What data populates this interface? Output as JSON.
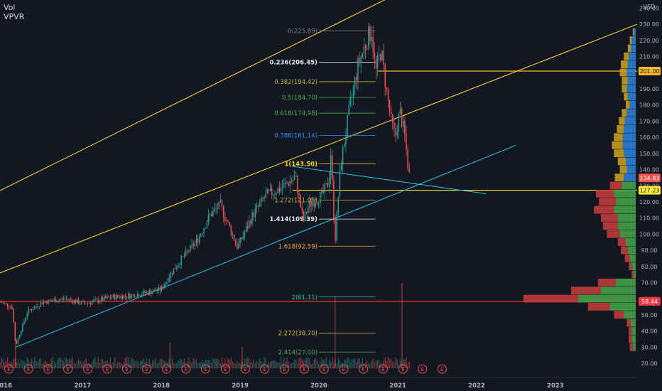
{
  "legend": {
    "line1": "Vol",
    "line2": "VPVR"
  },
  "price_axis": {
    "unit": "USD",
    "ticks": [
      "20.00",
      "30.00",
      "40.00",
      "50.00",
      "60.00",
      "70.00",
      "80.00",
      "90.00",
      "100.00",
      "110.00",
      "120.00",
      "130.00",
      "140.00",
      "150.00",
      "160.00",
      "170.00",
      "180.00",
      "190.00",
      "200.00",
      "210.00",
      "220.00",
      "230.00",
      "240.00"
    ],
    "badges": [
      {
        "value": 201.0,
        "label": "201.00",
        "bg": "#f5b927",
        "fg": "#131722"
      },
      {
        "value": 134.83,
        "label": "134.83",
        "bg": "#ef5350",
        "fg": "#ffffff"
      },
      {
        "value": 127.23,
        "label": "127.23",
        "bg": "#ffeb3b",
        "fg": "#131722"
      },
      {
        "value": 58.44,
        "label": "58.44",
        "bg": "#f23645",
        "fg": "#ffffff"
      }
    ]
  },
  "time_axis": {
    "labels": [
      "2016",
      "2017",
      "2018",
      "2019",
      "2020",
      "2021",
      "2022",
      "2023"
    ]
  },
  "earnings_marker": "E",
  "colors": {
    "background": "#131722",
    "up": "#26a69a",
    "down": "#ef5350",
    "trend_yellow": "#f2d62d",
    "trend_blue": "#2bb8d9",
    "support_red": "#ff2a2a",
    "vp_blue": "#2a7fd4",
    "vp_gold": "#c79b1f",
    "vp_green": "#43a047",
    "vp_red": "#c23b3b"
  },
  "chart_data": {
    "type": "candlestick",
    "title": "",
    "ylim": [
      17,
      245
    ],
    "x_range": [
      "2015-12-15",
      "2024-01-15"
    ],
    "price_path": [
      [
        "2015-12-15",
        58
      ],
      [
        "2016-02-10",
        55
      ],
      [
        "2016-02-25",
        31
      ],
      [
        "2016-04-20",
        52
      ],
      [
        "2016-07-01",
        58
      ],
      [
        "2016-10-15",
        60
      ],
      [
        "2017-01-10",
        57
      ],
      [
        "2017-05-15",
        61
      ],
      [
        "2017-08-10",
        62
      ],
      [
        "2017-11-01",
        64
      ],
      [
        "2018-01-01",
        66
      ],
      [
        "2018-02-15",
        76
      ],
      [
        "2018-04-01",
        84
      ],
      [
        "2018-06-15",
        96
      ],
      [
        "2018-08-15",
        112
      ],
      [
        "2018-10-01",
        118
      ],
      [
        "2018-12-20",
        92
      ],
      [
        "2019-03-01",
        112
      ],
      [
        "2019-05-01",
        124
      ],
      [
        "2019-07-01",
        128
      ],
      [
        "2019-09-15",
        135
      ],
      [
        "2019-10-20",
        108
      ],
      [
        "2019-11-15",
        118
      ],
      [
        "2020-01-15",
        124
      ],
      [
        "2020-02-15",
        132
      ],
      [
        "2020-02-25",
        150
      ],
      [
        "2020-03-16",
        96
      ],
      [
        "2020-04-10",
        142
      ],
      [
        "2020-05-20",
        176
      ],
      [
        "2020-07-01",
        205
      ],
      [
        "2020-08-15",
        222
      ],
      [
        "2020-09-01",
        226
      ],
      [
        "2020-09-20",
        200
      ],
      [
        "2020-10-15",
        214
      ],
      [
        "2020-11-10",
        188
      ],
      [
        "2020-12-01",
        170
      ],
      [
        "2020-12-20",
        160
      ],
      [
        "2021-01-10",
        176
      ],
      [
        "2021-02-01",
        162
      ],
      [
        "2021-02-20",
        138
      ],
      [
        "2021-03-01",
        134.83
      ]
    ],
    "volume_spikes": [
      {
        "date": "2020-03-16",
        "rel": 0.85
      },
      {
        "date": "2021-01-20",
        "rel": 1.0
      },
      {
        "date": "2016-02-25",
        "rel": 0.35
      },
      {
        "date": "2018-02-10",
        "rel": 0.3
      },
      {
        "date": "2019-01-10",
        "rel": 0.25
      }
    ],
    "earnings_dates": [
      "2016-01-25",
      "2016-04-25",
      "2016-07-25",
      "2016-10-25",
      "2017-01-25",
      "2017-04-25",
      "2017-07-25",
      "2017-10-25",
      "2018-01-25",
      "2018-04-25",
      "2018-07-25",
      "2018-10-25",
      "2019-01-25",
      "2019-04-25",
      "2019-07-25",
      "2019-10-25",
      "2020-01-25",
      "2020-04-25",
      "2020-07-25",
      "2020-10-25",
      "2021-01-25",
      "2021-04-25",
      "2021-07-25"
    ],
    "fib_levels": [
      {
        "label": "0(225.89)",
        "value": 225.89,
        "color": "#787b86",
        "bold": false
      },
      {
        "label": "0.236(206.45)",
        "value": 206.45,
        "color": "#e0e3eb",
        "bold": true
      },
      {
        "label": "0.382(194.42)",
        "value": 194.42,
        "color": "#c9b93c",
        "bold": false
      },
      {
        "label": "0.5(184.70)",
        "value": 184.7,
        "color": "#4caf50",
        "bold": false
      },
      {
        "label": "0.618(174.98)",
        "value": 174.98,
        "color": "#4caf50",
        "bold": false
      },
      {
        "label": "0.786(161.14)",
        "value": 161.14,
        "color": "#2196f3",
        "bold": false
      },
      {
        "label": "1(143.50)",
        "value": 143.5,
        "color": "#f2d62d",
        "bold": true
      },
      {
        "label": "1.272(121.09)",
        "value": 121.09,
        "color": "#c9b93c",
        "bold": false
      },
      {
        "label": "1.414(109.39)",
        "value": 109.39,
        "color": "#e0e3eb",
        "bold": true
      },
      {
        "label": "1.618(92.59)",
        "value": 92.59,
        "color": "#f2a23c",
        "bold": false
      },
      {
        "label": "2(61.11)",
        "value": 61.11,
        "color": "#26c6a9",
        "bold": false
      },
      {
        "label": "2.272(38.70)",
        "value": 38.7,
        "color": "#c9b93c",
        "bold": false
      },
      {
        "label": "2.414(27.00)",
        "value": 27.0,
        "color": "#4caf50",
        "bold": false
      }
    ],
    "trend_lines": [
      {
        "color": "#f2d62d",
        "from": [
          "2015-12-15",
          127
        ],
        "to": [
          "2020-12-15",
          248
        ]
      },
      {
        "color": "#f2d62d",
        "from": [
          "2015-12-15",
          76
        ],
        "to": [
          "2024-01-15",
          230
        ]
      },
      {
        "color": "#2bb8d9",
        "from": [
          "2016-02-25",
          30
        ],
        "to": [
          "2022-07-01",
          155
        ]
      },
      {
        "color": "#2bb8d9",
        "from": [
          "2019-09-01",
          142
        ],
        "to": [
          "2022-02-15",
          125
        ]
      }
    ],
    "horizontal_lines": [
      {
        "value": 201.0,
        "color": "#f5b927",
        "from": "2020-10-01"
      },
      {
        "value": 127.23,
        "color": "#ffeb3b",
        "from": "2019-09-01"
      },
      {
        "value": 58.44,
        "color": "#ff2a2a",
        "from": "2015-12-15"
      }
    ],
    "volume_profile": [
      {
        "price": 225,
        "up": 0.02,
        "down": 0.01
      },
      {
        "price": 220,
        "up": 0.04,
        "down": 0.02
      },
      {
        "price": 215,
        "up": 0.05,
        "down": 0.03
      },
      {
        "price": 210,
        "up": 0.07,
        "down": 0.05
      },
      {
        "price": 205,
        "up": 0.08,
        "down": 0.07
      },
      {
        "price": 200,
        "up": 0.09,
        "down": 0.07
      },
      {
        "price": 195,
        "up": 0.08,
        "down": 0.06
      },
      {
        "price": 190,
        "up": 0.09,
        "down": 0.05
      },
      {
        "price": 185,
        "up": 0.08,
        "down": 0.04
      },
      {
        "price": 180,
        "up": 0.06,
        "down": 0.04
      },
      {
        "price": 175,
        "up": 0.09,
        "down": 0.05
      },
      {
        "price": 170,
        "up": 0.11,
        "down": 0.06
      },
      {
        "price": 165,
        "up": 0.12,
        "down": 0.07
      },
      {
        "price": 160,
        "up": 0.13,
        "down": 0.09
      },
      {
        "price": 155,
        "up": 0.13,
        "down": 0.11
      },
      {
        "price": 150,
        "up": 0.12,
        "down": 0.1
      },
      {
        "price": 145,
        "up": 0.1,
        "down": 0.08
      },
      {
        "price": 140,
        "up": 0.09,
        "down": 0.07
      },
      {
        "price": 135,
        "up": 0.12,
        "down": 0.09
      },
      {
        "price": 130,
        "up": 0.14,
        "down": 0.12
      },
      {
        "price": 125,
        "up": 0.22,
        "down": 0.18
      },
      {
        "price": 120,
        "up": 0.2,
        "down": 0.17
      },
      {
        "price": 115,
        "up": 0.22,
        "down": 0.2
      },
      {
        "price": 110,
        "up": 0.18,
        "down": 0.17
      },
      {
        "price": 105,
        "up": 0.18,
        "down": 0.15
      },
      {
        "price": 100,
        "up": 0.16,
        "down": 0.13
      },
      {
        "price": 95,
        "up": 0.1,
        "down": 0.08
      },
      {
        "price": 90,
        "up": 0.08,
        "down": 0.07
      },
      {
        "price": 85,
        "up": 0.06,
        "down": 0.05
      },
      {
        "price": 80,
        "up": 0.04,
        "down": 0.03
      },
      {
        "price": 75,
        "up": 0.02,
        "down": 0.02
      },
      {
        "price": 70,
        "up": 0.2,
        "down": 0.18
      },
      {
        "price": 65,
        "up": 0.35,
        "down": 0.3
      },
      {
        "price": 60,
        "up": 0.58,
        "down": 0.55
      },
      {
        "price": 55,
        "up": 0.26,
        "down": 0.22
      },
      {
        "price": 50,
        "up": 0.12,
        "down": 0.1
      },
      {
        "price": 45,
        "up": 0.05,
        "down": 0.04
      },
      {
        "price": 40,
        "up": 0.04,
        "down": 0.03
      },
      {
        "price": 35,
        "up": 0.04,
        "down": 0.03
      },
      {
        "price": 30,
        "up": 0.03,
        "down": 0.03
      }
    ]
  }
}
